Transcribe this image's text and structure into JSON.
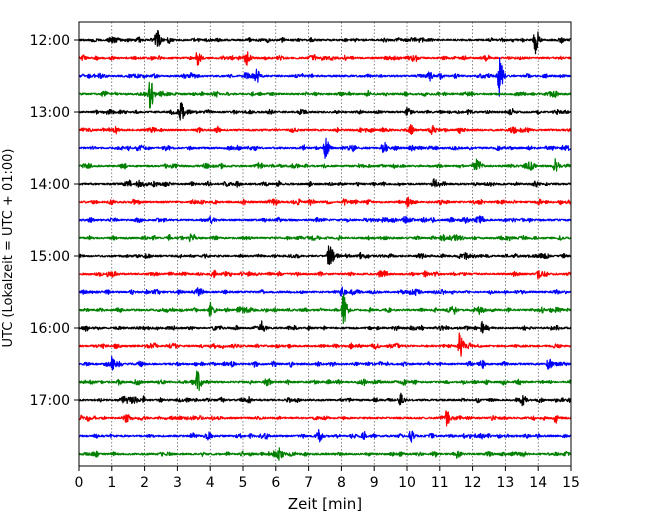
{
  "chart_data": {
    "type": "line",
    "title": "",
    "xlabel": "Zeit  [min]",
    "ylabel": "UTC (Lokalzeit = UTC + 01:00)",
    "xlim": [
      0,
      15
    ],
    "x_ticks": [
      "0",
      "1",
      "2",
      "3",
      "4",
      "5",
      "6",
      "7",
      "8",
      "9",
      "10",
      "11",
      "12",
      "13",
      "14",
      "15"
    ],
    "y_ticks": [
      "12:00",
      "13:00",
      "14:00",
      "15:00",
      "16:00",
      "17:00"
    ],
    "grid": "vertical-dotted",
    "trace_interval_min": 15,
    "colors": [
      "#000000",
      "#ff0000",
      "#0000ff",
      "#008000"
    ],
    "series": [
      {
        "start": "12:00",
        "color": "#000000",
        "events": [
          [
            2.35,
            1.0
          ],
          [
            13.9,
            1.2
          ]
        ]
      },
      {
        "start": "12:15",
        "color": "#ff0000",
        "events": [
          [
            3.6,
            0.6
          ],
          [
            5.1,
            0.5
          ]
        ]
      },
      {
        "start": "12:30",
        "color": "#0000ff",
        "events": [
          [
            5.4,
            0.6
          ],
          [
            12.8,
            1.8
          ]
        ]
      },
      {
        "start": "12:45",
        "color": "#008000",
        "events": [
          [
            2.15,
            1.3
          ]
        ]
      },
      {
        "start": "13:00",
        "color": "#000000",
        "events": [
          [
            3.1,
            0.5
          ],
          [
            10.0,
            0.4
          ]
        ]
      },
      {
        "start": "13:15",
        "color": "#ff0000",
        "events": [
          [
            10.1,
            0.4
          ]
        ]
      },
      {
        "start": "13:30",
        "color": "#0000ff",
        "events": [
          [
            7.5,
            0.9
          ],
          [
            9.25,
            0.7
          ]
        ]
      },
      {
        "start": "13:45",
        "color": "#008000",
        "events": [
          [
            12.1,
            0.7
          ],
          [
            14.5,
            0.7
          ]
        ]
      },
      {
        "start": "14:00",
        "color": "#000000",
        "events": [
          [
            10.8,
            0.5
          ]
        ]
      },
      {
        "start": "14:15",
        "color": "#ff0000",
        "events": [
          [
            10.0,
            0.4
          ]
        ]
      },
      {
        "start": "14:30",
        "color": "#0000ff",
        "events": [
          [
            4.0,
            0.4
          ]
        ]
      },
      {
        "start": "14:45",
        "color": "#008000",
        "events": [
          [
            3.4,
            0.4
          ]
        ]
      },
      {
        "start": "15:00",
        "color": "#000000",
        "events": [
          [
            7.6,
            1.3
          ]
        ]
      },
      {
        "start": "15:15",
        "color": "#ff0000",
        "events": [
          [
            14.0,
            0.4
          ]
        ]
      },
      {
        "start": "15:30",
        "color": "#0000ff",
        "events": [
          [
            8.0,
            0.4
          ]
        ]
      },
      {
        "start": "15:45",
        "color": "#008000",
        "events": [
          [
            4.0,
            0.8
          ],
          [
            8.05,
            1.4
          ],
          [
            12.2,
            0.5
          ]
        ]
      },
      {
        "start": "16:00",
        "color": "#000000",
        "events": [
          [
            5.55,
            0.6
          ],
          [
            12.3,
            0.5
          ]
        ]
      },
      {
        "start": "16:15",
        "color": "#ff0000",
        "events": [
          [
            11.6,
            1.2
          ]
        ]
      },
      {
        "start": "16:30",
        "color": "#0000ff",
        "events": [
          [
            1.0,
            0.6
          ],
          [
            14.3,
            0.4
          ]
        ]
      },
      {
        "start": "16:45",
        "color": "#008000",
        "events": [
          [
            3.6,
            1.0
          ],
          [
            5.7,
            0.5
          ]
        ]
      },
      {
        "start": "17:00",
        "color": "#000000",
        "events": [
          [
            1.6,
            0.5
          ],
          [
            9.8,
            0.4
          ],
          [
            13.5,
            0.4
          ]
        ]
      },
      {
        "start": "17:15",
        "color": "#ff0000",
        "events": [
          [
            11.2,
            0.6
          ],
          [
            14.5,
            0.5
          ]
        ]
      },
      {
        "start": "17:30",
        "color": "#0000ff",
        "events": [
          [
            7.3,
            0.4
          ],
          [
            10.1,
            0.4
          ]
        ]
      },
      {
        "start": "17:45",
        "color": "#008000",
        "events": [
          [
            6.1,
            0.5
          ],
          [
            11.5,
            0.3
          ]
        ]
      }
    ]
  }
}
